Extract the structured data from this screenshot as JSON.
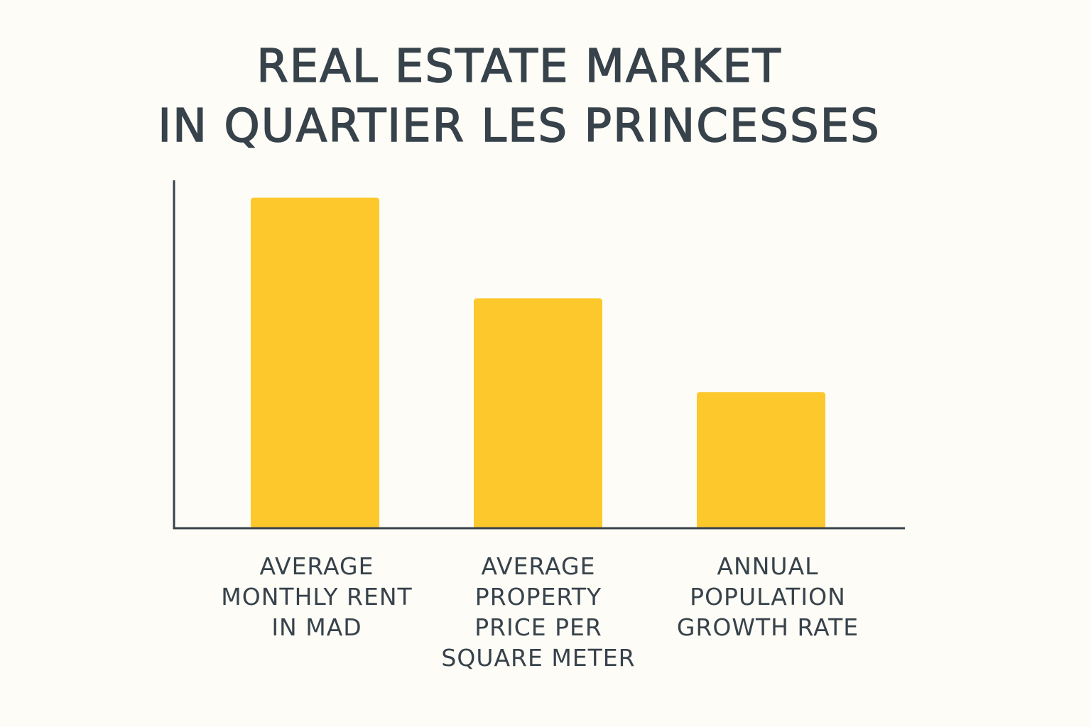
{
  "chart_data": {
    "type": "bar",
    "title_lines": [
      "REAL ESTATE MARKET",
      "IN QUARTIER LES PRINCESSES"
    ],
    "categories": [
      "AVERAGE\nMONTHLY RENT\nIN MAD",
      "AVERAGE\nPROPERTY\nPRICE PER\nSQUARE METER",
      "ANNUAL\nPOPULATION\nGROWTH RATE"
    ],
    "values": [
      95,
      66,
      39
    ],
    "ylim": [
      0,
      100
    ],
    "xlabel": "",
    "ylabel": "",
    "grid": false,
    "legend": "none",
    "bar_color": "#fdc82c",
    "axis_color": "#37424b"
  }
}
